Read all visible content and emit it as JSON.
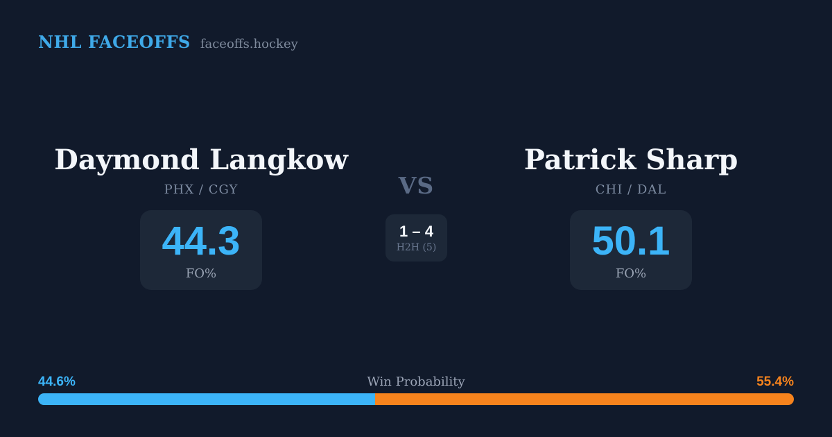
{
  "header": {
    "brand": "NHL FACEOFFS",
    "site": "faceoffs.hockey"
  },
  "matchup": {
    "player1": {
      "name": "Daymond Langkow",
      "teams": "PHX / CGY",
      "stat_value": "44.3",
      "stat_label": "FO%"
    },
    "vs_label": "VS",
    "h2h": {
      "score": "1 – 4",
      "label": "H2H (5)"
    },
    "player2": {
      "name": "Patrick Sharp",
      "teams": "CHI / DAL",
      "stat_value": "50.1",
      "stat_label": "FO%"
    }
  },
  "win_probability": {
    "title": "Win Probability",
    "left_pct_label": "44.6%",
    "right_pct_label": "55.4%",
    "left_value": 44.6,
    "right_value": 55.4
  },
  "colors": {
    "background": "#111a2b",
    "card_box": "#1d2838",
    "accent_blue": "#3cb4f8",
    "accent_orange": "#f6831d",
    "brand_blue": "#3fa9e8",
    "text_white": "#f3f6fa",
    "text_gray": "#7d8ba1",
    "vs_gray": "#5a6a85"
  }
}
